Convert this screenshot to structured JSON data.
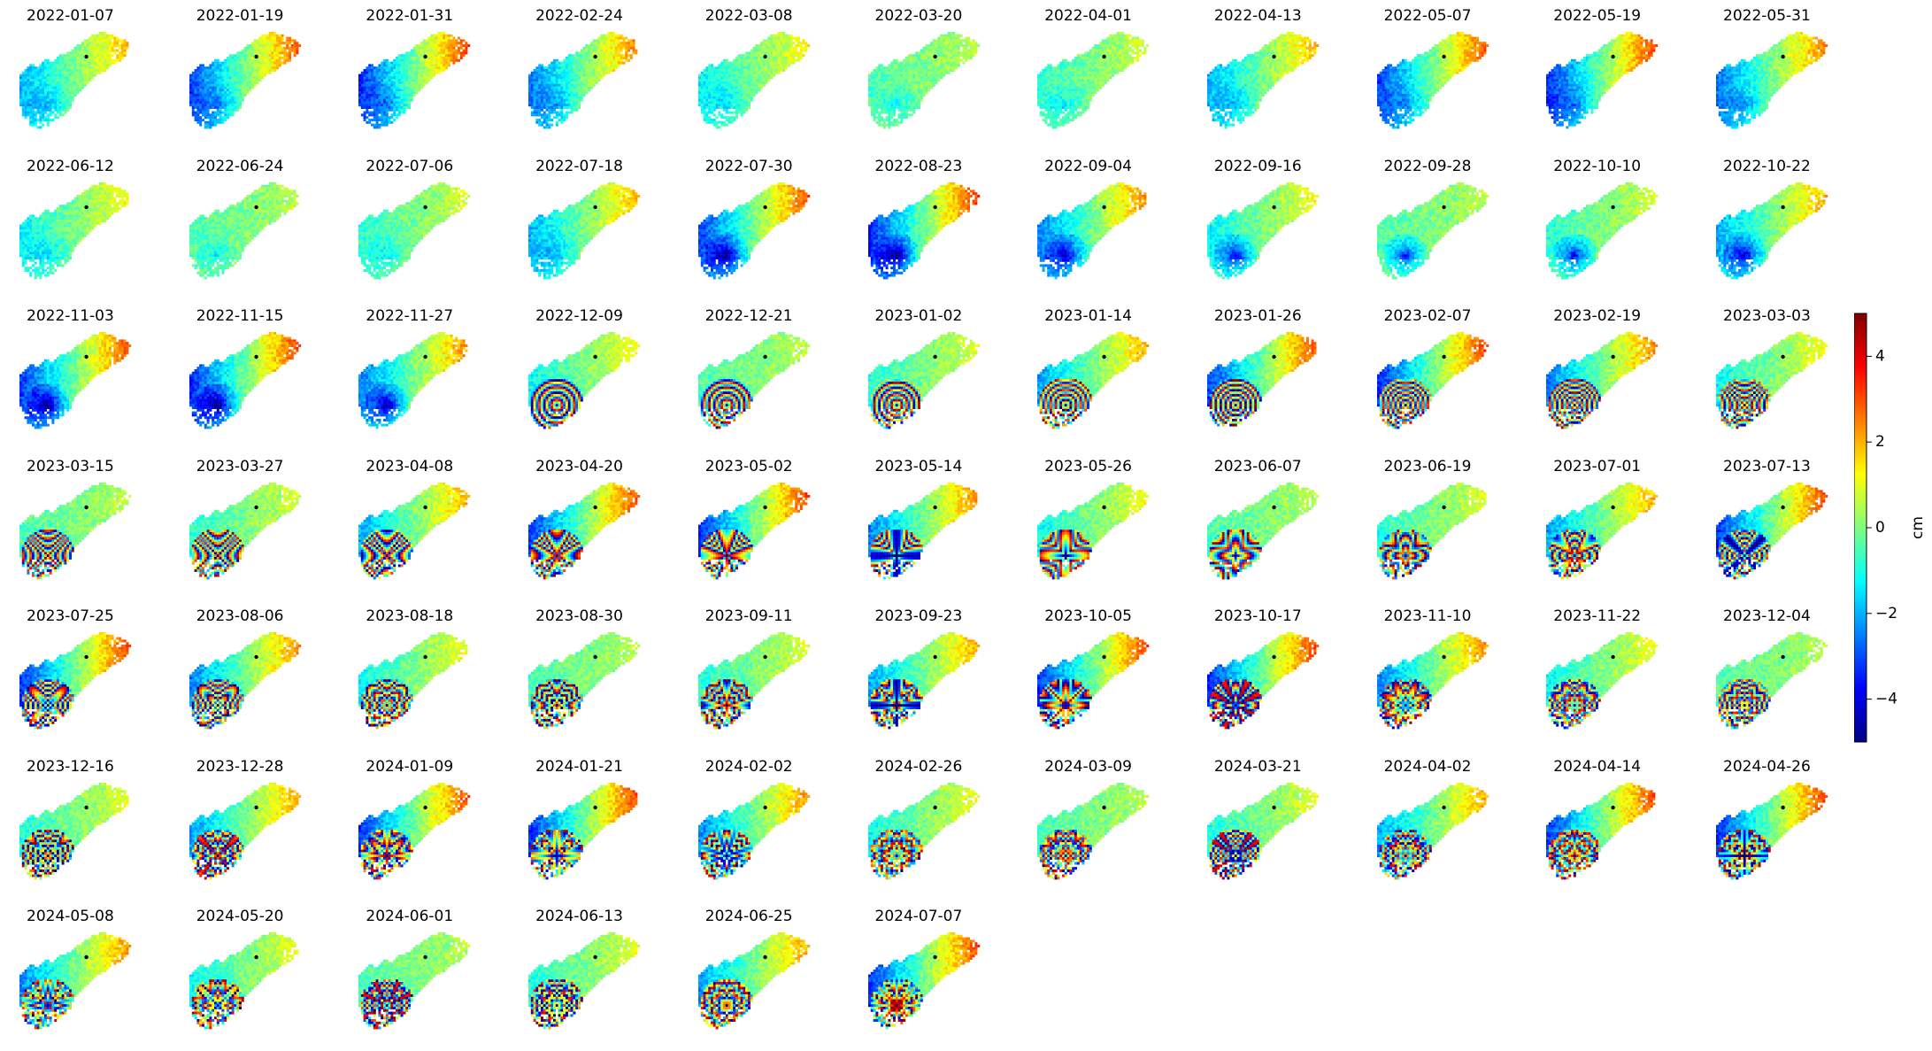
{
  "colormap": "jet",
  "colormap_stops": [
    "#00007f",
    "#0000ff",
    "#007fff",
    "#00ffff",
    "#7fff7f",
    "#ffff00",
    "#ff7f00",
    "#ff0000",
    "#7f0000"
  ],
  "reference_point_color": "#000000",
  "chart_data": {
    "type": "heatmap",
    "layout": {
      "columns": 11,
      "rows": 7
    },
    "dates": [
      "2022-01-07",
      "2022-01-19",
      "2022-01-31",
      "2022-02-24",
      "2022-03-08",
      "2022-03-20",
      "2022-04-01",
      "2022-04-13",
      "2022-05-07",
      "2022-05-19",
      "2022-05-31",
      "2022-06-12",
      "2022-06-24",
      "2022-07-06",
      "2022-07-18",
      "2022-07-30",
      "2022-08-23",
      "2022-09-04",
      "2022-09-16",
      "2022-09-28",
      "2022-10-10",
      "2022-10-22",
      "2022-11-03",
      "2022-11-15",
      "2022-11-27",
      "2022-12-09",
      "2022-12-21",
      "2023-01-02",
      "2023-01-14",
      "2023-01-26",
      "2023-02-07",
      "2023-02-19",
      "2023-03-03",
      "2023-03-15",
      "2023-03-27",
      "2023-04-08",
      "2023-04-20",
      "2023-05-02",
      "2023-05-14",
      "2023-05-26",
      "2023-06-07",
      "2023-06-19",
      "2023-07-01",
      "2023-07-13",
      "2023-07-25",
      "2023-08-06",
      "2023-08-18",
      "2023-08-30",
      "2023-09-11",
      "2023-09-23",
      "2023-10-05",
      "2023-10-17",
      "2023-11-10",
      "2023-11-22",
      "2023-12-04",
      "2023-12-16",
      "2023-12-28",
      "2024-01-09",
      "2024-01-21",
      "2024-02-02",
      "2024-02-26",
      "2024-03-09",
      "2024-03-21",
      "2024-04-02",
      "2024-04-14",
      "2024-04-26",
      "2024-05-08",
      "2024-05-20",
      "2024-06-01",
      "2024-06-13",
      "2024-06-25",
      "2024-07-07"
    ],
    "colorbar": {
      "label": "cm",
      "range": [
        -5,
        5
      ],
      "ticks": [
        4,
        2,
        0,
        -2,
        -4
      ],
      "tick_labels": [
        "4",
        "2",
        "0",
        "−2",
        "−4"
      ]
    },
    "axes_visible": false,
    "grid": false
  }
}
